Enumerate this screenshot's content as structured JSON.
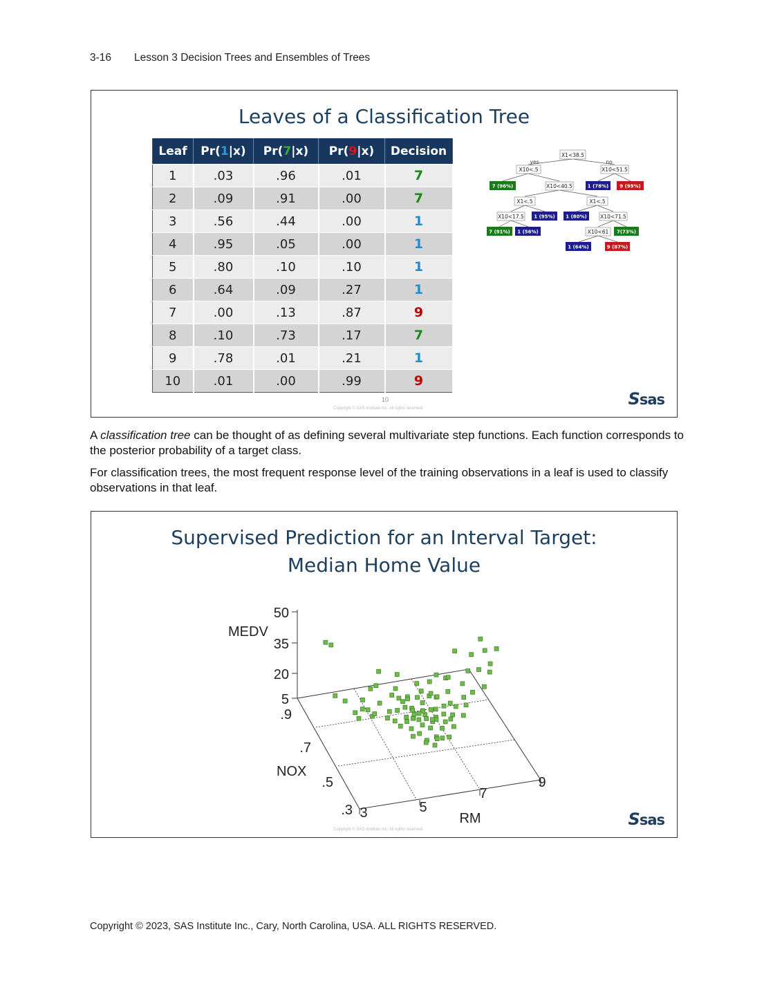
{
  "header": {
    "page_number": "3-16",
    "title": "Lesson 3  Decision Trees and Ensembles of Trees"
  },
  "slide1": {
    "title": "Leaves of a Classification Tree",
    "table": {
      "headers": [
        "Leaf",
        "Pr(",
        "1",
        "|x)",
        "Pr(",
        "7",
        "|x)",
        "Pr(",
        "9",
        "|x)",
        "Decision"
      ],
      "rows": [
        [
          "1",
          ".03",
          ".96",
          ".01",
          "7"
        ],
        [
          "2",
          ".09",
          ".91",
          ".00",
          "7"
        ],
        [
          "3",
          ".56",
          ".44",
          ".00",
          "1"
        ],
        [
          "4",
          ".95",
          ".05",
          ".00",
          "1"
        ],
        [
          "5",
          ".80",
          ".10",
          ".10",
          "1"
        ],
        [
          "6",
          ".64",
          ".09",
          ".27",
          "1"
        ],
        [
          "7",
          ".00",
          ".13",
          ".87",
          "9"
        ],
        [
          "8",
          ".10",
          ".73",
          ".17",
          "7"
        ],
        [
          "9",
          ".78",
          ".01",
          ".21",
          "1"
        ],
        [
          "10",
          ".01",
          ".00",
          ".99",
          "9"
        ]
      ]
    },
    "tree": {
      "edge_labels": [
        "yes",
        "no"
      ],
      "splits": [
        "X1<38.5",
        "X10<.5",
        "X10<51.5",
        "X10<40.5",
        "X1<.5",
        "X1<.5",
        "X10<17.5",
        "X10<71.5",
        "X10<61"
      ],
      "leaves": [
        "7 (96%)",
        "1 (78%)",
        "9 (99%)",
        "1 (95%)",
        "1 (80%)",
        "7 (91%)",
        "1 (56%)",
        "7(73%)",
        "1 (64%)",
        "9 (87%)"
      ]
    },
    "slide_number": "10",
    "copyright": "Copyright © SAS Institute Inc. All rights reserved."
  },
  "paragraph1": {
    "prefix": "A ",
    "em": "classification tree",
    "rest": " can be thought of as defining several multivariate step functions. Each function corresponds to the posterior probability of a target class."
  },
  "paragraph2": "For classification trees, the most frequent response level of the training observations in a leaf is used to classify observations in that leaf.",
  "slide2": {
    "title_line1": "Supervised Prediction for an Interval Target:",
    "title_line2": "Median Home Value",
    "copyright": "Copyright © SAS Institute Inc. All rights reserved."
  },
  "chart_data": {
    "type": "scatter",
    "title": "",
    "axes": {
      "z": {
        "label": "MEDV",
        "ticks": [
          "50",
          "35",
          "20",
          "5"
        ],
        "range": [
          5,
          50
        ]
      },
      "y": {
        "label": "NOX",
        "ticks": [
          ".9",
          ".7",
          ".5",
          ".3"
        ],
        "range": [
          0.3,
          0.9
        ]
      },
      "x": {
        "label": "RM",
        "ticks": [
          "3",
          "5",
          "7",
          "9"
        ],
        "range": [
          3,
          9
        ]
      }
    },
    "marker_color": "#6fba4a",
    "points_note": "cloud of ~500 observations (Boston housing: RM vs NOX vs MEDV)",
    "points": [
      [
        6.2,
        0.55,
        22
      ],
      [
        6.0,
        0.52,
        20
      ],
      [
        5.9,
        0.58,
        18
      ],
      [
        6.4,
        0.5,
        25
      ],
      [
        6.1,
        0.47,
        23
      ],
      [
        5.8,
        0.62,
        15
      ],
      [
        6.6,
        0.48,
        28
      ],
      [
        6.3,
        0.6,
        19
      ],
      [
        5.7,
        0.68,
        13
      ],
      [
        6.0,
        0.71,
        14
      ],
      [
        6.8,
        0.45,
        30
      ],
      [
        7.2,
        0.43,
        36
      ],
      [
        7.5,
        0.45,
        40
      ],
      [
        7.8,
        0.42,
        45
      ],
      [
        8.3,
        0.5,
        48
      ],
      [
        8.0,
        0.6,
        44
      ],
      [
        6.5,
        0.4,
        24
      ],
      [
        6.2,
        0.44,
        21
      ],
      [
        5.9,
        0.45,
        19
      ],
      [
        5.6,
        0.5,
        17
      ],
      [
        6.1,
        0.65,
        16
      ],
      [
        6.4,
        0.63,
        20
      ],
      [
        6.7,
        0.58,
        27
      ],
      [
        7.0,
        0.55,
        32
      ],
      [
        5.5,
        0.7,
        11
      ],
      [
        5.3,
        0.74,
        12
      ],
      [
        5.2,
        0.8,
        14
      ],
      [
        4.9,
        0.7,
        10
      ],
      [
        4.6,
        0.66,
        18
      ],
      [
        4.2,
        0.77,
        13
      ],
      [
        4.0,
        0.85,
        35
      ],
      [
        3.7,
        0.82,
        40
      ],
      [
        6.9,
        0.5,
        31
      ],
      [
        7.1,
        0.6,
        34
      ],
      [
        7.4,
        0.52,
        38
      ],
      [
        7.6,
        0.65,
        42
      ],
      [
        8.4,
        0.58,
        47
      ],
      [
        8.7,
        0.55,
        50
      ],
      [
        6.3,
        0.41,
        23
      ],
      [
        6.0,
        0.4,
        21
      ],
      [
        5.8,
        0.43,
        20
      ],
      [
        6.5,
        0.53,
        26
      ],
      [
        6.2,
        0.57,
        22
      ],
      [
        6.0,
        0.6,
        18
      ],
      [
        5.9,
        0.66,
        16
      ],
      [
        6.6,
        0.62,
        24
      ],
      [
        6.9,
        0.7,
        23
      ],
      [
        5.4,
        0.62,
        14
      ],
      [
        5.6,
        0.56,
        19
      ],
      [
        6.1,
        0.51,
        24
      ],
      [
        6.3,
        0.47,
        27
      ],
      [
        6.7,
        0.44,
        29
      ],
      [
        6.4,
        0.68,
        18
      ],
      [
        6.2,
        0.72,
        15
      ],
      [
        5.8,
        0.76,
        13
      ],
      [
        5.5,
        0.83,
        12
      ],
      [
        7.3,
        0.48,
        35
      ],
      [
        7.9,
        0.5,
        46
      ],
      [
        6.8,
        0.66,
        21
      ],
      [
        6.1,
        0.58,
        20
      ],
      [
        5.95,
        0.54,
        21
      ],
      [
        6.25,
        0.49,
        24
      ],
      [
        6.45,
        0.56,
        23
      ],
      [
        6.05,
        0.63,
        17
      ],
      [
        5.75,
        0.48,
        20
      ],
      [
        5.65,
        0.53,
        18
      ],
      [
        6.55,
        0.45,
        27
      ],
      [
        6.35,
        0.52,
        22
      ],
      [
        6.15,
        0.42,
        22
      ],
      [
        5.85,
        0.57,
        19
      ],
      [
        6.75,
        0.52,
        28
      ],
      [
        6.95,
        0.46,
        33
      ],
      [
        5.45,
        0.58,
        15
      ],
      [
        5.25,
        0.65,
        13
      ],
      [
        5.05,
        0.72,
        9
      ],
      [
        4.85,
        0.78,
        11
      ],
      [
        4.5,
        0.72,
        8
      ],
      [
        4.3,
        0.63,
        22
      ],
      [
        3.9,
        0.59,
        25
      ],
      [
        3.6,
        0.7,
        24
      ],
      [
        7.7,
        0.55,
        41
      ],
      [
        8.1,
        0.45,
        49
      ],
      [
        8.5,
        0.65,
        46
      ],
      [
        7.0,
        0.4,
        34
      ],
      [
        6.6,
        0.74,
        19
      ],
      [
        6.0,
        0.78,
        14
      ],
      [
        5.7,
        0.86,
        16
      ],
      [
        6.2,
        0.82,
        17
      ],
      [
        6.4,
        0.44,
        25
      ],
      [
        6.7,
        0.41,
        28
      ],
      [
        6.8,
        0.6,
        25
      ],
      [
        7.1,
        0.69,
        27
      ],
      [
        7.3,
        0.63,
        31
      ],
      [
        6.5,
        0.67,
        22
      ],
      [
        6.1,
        0.69,
        17
      ],
      [
        5.9,
        0.72,
        15
      ]
    ]
  },
  "footer": "Copyright © 2023, SAS Institute Inc., Cary, North Carolina, USA. ALL RIGHTS RESERVED."
}
